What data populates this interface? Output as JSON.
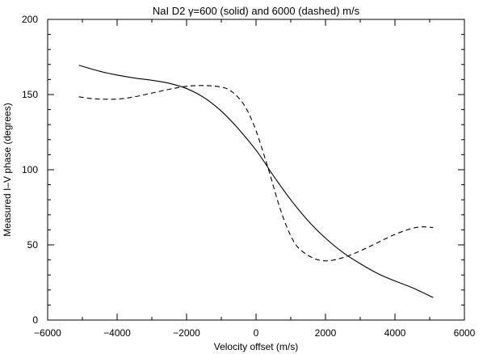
{
  "chart_data": {
    "type": "line",
    "title": "NaI D2 γ=600 (solid) and 6000 (dashed) m/s",
    "xlabel": "Velocity offset (m/s)",
    "ylabel": "Measured I–V phase (degrees)",
    "xlim": [
      -6000,
      6000
    ],
    "ylim": [
      0,
      200
    ],
    "xticks": [
      -6000,
      -4000,
      -2000,
      0,
      2000,
      4000,
      6000
    ],
    "yticks": [
      0,
      50,
      100,
      150,
      200
    ],
    "xtick_labels": [
      "−6000",
      "−4000",
      "−2000",
      "0",
      "2000",
      "4000",
      "6000"
    ],
    "ytick_labels": [
      "0",
      "50",
      "100",
      "150",
      "200"
    ],
    "grid": false,
    "legend": "none",
    "series": [
      {
        "style": "solid",
        "color": "#000000",
        "points": [
          [
            -5100,
            169.5
          ],
          [
            -4500,
            165.5
          ],
          [
            -4000,
            163
          ],
          [
            -3500,
            161
          ],
          [
            -3000,
            159.5
          ],
          [
            -2500,
            157.5
          ],
          [
            -2000,
            154
          ],
          [
            -1500,
            148
          ],
          [
            -1000,
            139
          ],
          [
            -500,
            127
          ],
          [
            0,
            113
          ],
          [
            300,
            103
          ],
          [
            500,
            96
          ],
          [
            1000,
            80
          ],
          [
            1500,
            66
          ],
          [
            2000,
            54.5
          ],
          [
            2500,
            45
          ],
          [
            3000,
            37.5
          ],
          [
            3500,
            31
          ],
          [
            4000,
            26
          ],
          [
            4500,
            21.5
          ],
          [
            5100,
            15
          ]
        ]
      },
      {
        "style": "dashed",
        "color": "#000000",
        "points": [
          [
            -5100,
            148.5
          ],
          [
            -4800,
            147.5
          ],
          [
            -4500,
            147
          ],
          [
            -4000,
            147
          ],
          [
            -3500,
            148.5
          ],
          [
            -3000,
            151
          ],
          [
            -2500,
            153.5
          ],
          [
            -2000,
            155.5
          ],
          [
            -1500,
            156
          ],
          [
            -1000,
            155
          ],
          [
            -700,
            152
          ],
          [
            -400,
            145
          ],
          [
            -200,
            137
          ],
          [
            0,
            126
          ],
          [
            200,
            112
          ],
          [
            400,
            97
          ],
          [
            600,
            81
          ],
          [
            800,
            67
          ],
          [
            1000,
            56
          ],
          [
            1200,
            48.5
          ],
          [
            1500,
            43
          ],
          [
            1800,
            40
          ],
          [
            2100,
            39.5
          ],
          [
            2500,
            41.5
          ],
          [
            3000,
            46
          ],
          [
            3500,
            51.5
          ],
          [
            4000,
            57
          ],
          [
            4500,
            61
          ],
          [
            4800,
            62
          ],
          [
            5100,
            61.5
          ]
        ]
      }
    ]
  }
}
